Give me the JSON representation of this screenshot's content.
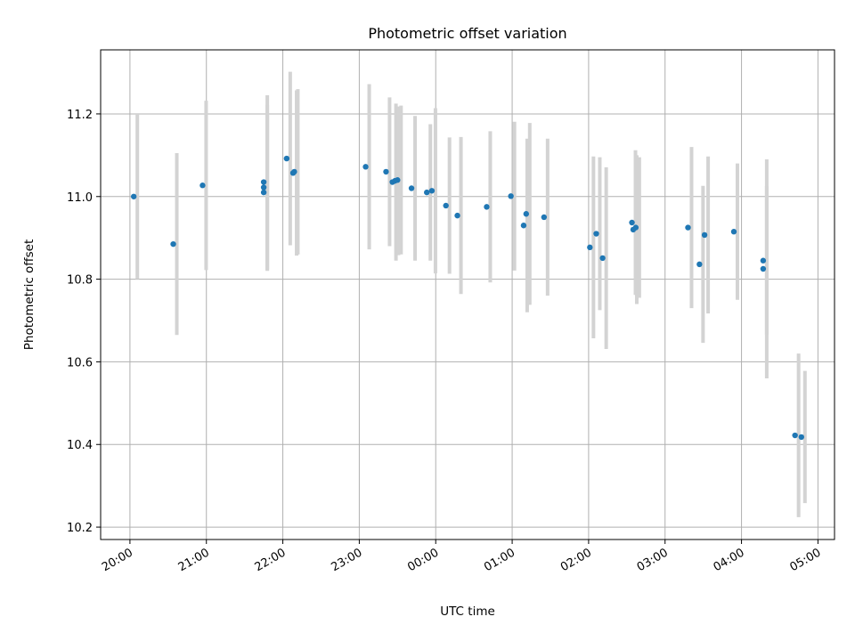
{
  "chart_data": {
    "type": "scatter",
    "title": "Photometric offset variation",
    "xlabel": "UTC time",
    "ylabel": "Photometric offset",
    "xlim": [
      "19:37",
      "05:13"
    ],
    "ylim": [
      10.17,
      11.355
    ],
    "x_ticks": [
      "20:00",
      "21:00",
      "22:00",
      "23:00",
      "00:00",
      "01:00",
      "02:00",
      "03:00",
      "04:00",
      "05:00"
    ],
    "y_ticks": [
      "10.2",
      "10.4",
      "10.6",
      "10.8",
      "11.0",
      "11.2"
    ],
    "grid": true,
    "point_color": "#1f77b4",
    "errorbar_color": "#d3d3d3",
    "points": [
      {
        "x": "20:03",
        "y": 11.0,
        "err": 0.2
      },
      {
        "x": "20:34",
        "y": 10.885,
        "err": 0.22
      },
      {
        "x": "20:57",
        "y": 11.027,
        "err": 0.205
      },
      {
        "x": "21:45",
        "y": 11.035,
        "err": 0.21
      },
      {
        "x": "21:45",
        "y": 11.022,
        "err": 0.2
      },
      {
        "x": "21:45",
        "y": 11.01,
        "err": 0.19
      },
      {
        "x": "22:03",
        "y": 11.092,
        "err": 0.21
      },
      {
        "x": "22:08",
        "y": 11.057,
        "err": 0.2
      },
      {
        "x": "22:09",
        "y": 11.06,
        "err": 0.2
      },
      {
        "x": "23:05",
        "y": 11.072,
        "err": 0.2
      },
      {
        "x": "23:21",
        "y": 11.06,
        "err": 0.18
      },
      {
        "x": "23:26",
        "y": 11.035,
        "err": 0.19
      },
      {
        "x": "23:28",
        "y": 11.038,
        "err": 0.18
      },
      {
        "x": "23:30",
        "y": 11.04,
        "err": 0.18
      },
      {
        "x": "23:41",
        "y": 11.02,
        "err": 0.175
      },
      {
        "x": "23:53",
        "y": 11.01,
        "err": 0.165
      },
      {
        "x": "23:57",
        "y": 11.014,
        "err": 0.2
      },
      {
        "x": "00:08",
        "y": 10.978,
        "err": 0.165
      },
      {
        "x": "00:17",
        "y": 10.954,
        "err": 0.19
      },
      {
        "x": "00:40",
        "y": 10.975,
        "err": 0.183
      },
      {
        "x": "00:59",
        "y": 11.001,
        "err": 0.18
      },
      {
        "x": "01:09",
        "y": 10.93,
        "err": 0.21
      },
      {
        "x": "01:11",
        "y": 10.958,
        "err": 0.22
      },
      {
        "x": "01:25",
        "y": 10.95,
        "err": 0.19
      },
      {
        "x": "02:01",
        "y": 10.877,
        "err": 0.22
      },
      {
        "x": "02:06",
        "y": 10.91,
        "err": 0.185
      },
      {
        "x": "02:11",
        "y": 10.851,
        "err": 0.22
      },
      {
        "x": "02:34",
        "y": 10.937,
        "err": 0.175
      },
      {
        "x": "02:35",
        "y": 10.92,
        "err": 0.18
      },
      {
        "x": "02:37",
        "y": 10.925,
        "err": 0.17
      },
      {
        "x": "03:18",
        "y": 10.925,
        "err": 0.195
      },
      {
        "x": "03:27",
        "y": 10.836,
        "err": 0.19
      },
      {
        "x": "03:31",
        "y": 10.907,
        "err": 0.19
      },
      {
        "x": "03:54",
        "y": 10.915,
        "err": 0.165
      },
      {
        "x": "04:17",
        "y": 10.845,
        "err": 0.18
      },
      {
        "x": "04:17",
        "y": 10.825,
        "err": 0.265
      },
      {
        "x": "04:42",
        "y": 10.422,
        "err": 0.198
      },
      {
        "x": "04:47",
        "y": 10.418,
        "err": 0.16
      }
    ]
  }
}
